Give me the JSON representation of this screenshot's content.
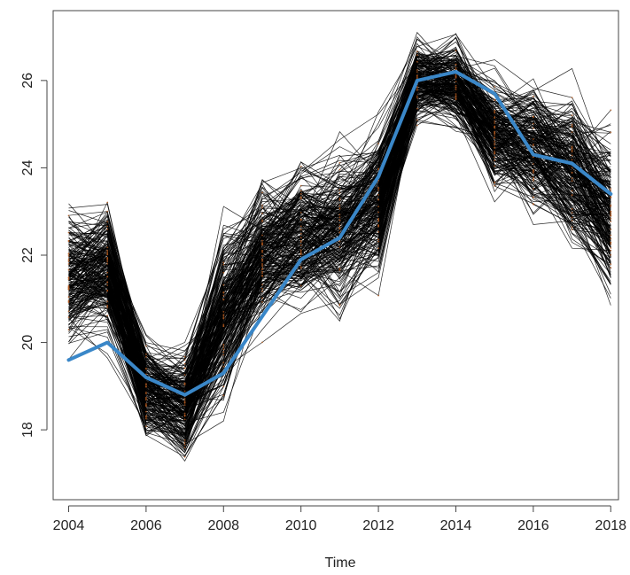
{
  "chart_data": {
    "type": "line",
    "title": "",
    "xlabel": "Time",
    "ylabel": "",
    "xlim": [
      2003.6,
      2018.2
    ],
    "ylim": [
      16.4,
      27.6
    ],
    "x": [
      2004,
      2005,
      2006,
      2007,
      2008,
      2009,
      2010,
      2011,
      2012,
      2013,
      2014,
      2015,
      2016,
      2017,
      2018
    ],
    "x_ticks": [
      "2004",
      "2006",
      "2008",
      "2010",
      "2012",
      "2014",
      "2016",
      "2018"
    ],
    "y_ticks": [
      "18",
      "20",
      "22",
      "24",
      "26"
    ],
    "grid": false,
    "series": [
      {
        "values": [
          19.6,
          20.0,
          19.2,
          18.8,
          19.3,
          20.6,
          21.9,
          22.4,
          23.8,
          26.0,
          26.2,
          25.7,
          24.3,
          24.1,
          23.4
        ]
      }
    ],
    "background_lines_band": {
      "lower": [
        19.4,
        19.6,
        17.4,
        16.9,
        17.8,
        19.8,
        20.0,
        20.1,
        21.0,
        24.8,
        24.6,
        23.0,
        22.5,
        21.5,
        20.2
      ],
      "upper": [
        23.6,
        23.7,
        20.4,
        20.2,
        23.4,
        24.2,
        24.7,
        24.9,
        25.5,
        27.2,
        27.3,
        26.5,
        26.5,
        26.4,
        25.6
      ]
    },
    "colors": {
      "mean_line": "#3a87c8",
      "sim_lines": "#000000",
      "highlight_points": "#b35a1f",
      "axis": "#444444"
    }
  }
}
